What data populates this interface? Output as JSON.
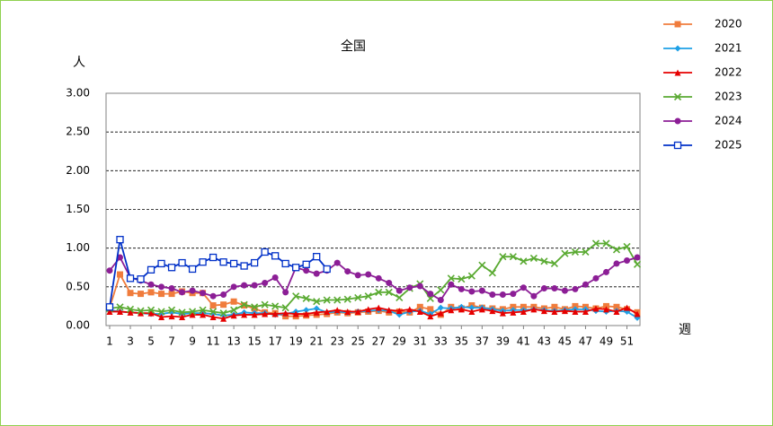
{
  "chart_data": {
    "type": "line",
    "title": "全国",
    "x_label": "週",
    "y_label": "人",
    "x": [
      1,
      2,
      3,
      4,
      5,
      6,
      7,
      8,
      9,
      10,
      11,
      12,
      13,
      14,
      15,
      16,
      17,
      18,
      19,
      20,
      21,
      22,
      23,
      24,
      25,
      26,
      27,
      28,
      29,
      30,
      31,
      32,
      33,
      34,
      35,
      36,
      37,
      38,
      39,
      40,
      41,
      42,
      43,
      44,
      45,
      46,
      47,
      48,
      49,
      50,
      51,
      52
    ],
    "xlim": [
      1,
      52
    ],
    "xticks": [
      1,
      3,
      5,
      7,
      9,
      11,
      13,
      15,
      17,
      19,
      21,
      23,
      25,
      27,
      29,
      31,
      33,
      35,
      37,
      39,
      41,
      43,
      45,
      47,
      49,
      51
    ],
    "ylim": [
      0,
      3
    ],
    "yticks": [
      {
        "value": 0,
        "label": "0.00"
      },
      {
        "value": 0.5,
        "label": "0.50"
      },
      {
        "value": 1,
        "label": "1.00"
      },
      {
        "value": 1.5,
        "label": "1.50"
      },
      {
        "value": 2,
        "label": "2.00"
      },
      {
        "value": 2.5,
        "label": "2.50"
      },
      {
        "value": 3,
        "label": "3.00"
      }
    ],
    "grid": true,
    "legend": "right",
    "series": [
      {
        "name": "2020",
        "color": "#f07c3c",
        "marker": "square",
        "values": [
          0.23,
          0.66,
          0.42,
          0.41,
          0.43,
          0.41,
          0.41,
          0.44,
          0.42,
          0.42,
          0.26,
          0.27,
          0.31,
          0.26,
          0.22,
          0.17,
          0.16,
          0.12,
          0.12,
          0.13,
          0.14,
          0.15,
          0.17,
          0.16,
          0.17,
          0.18,
          0.19,
          0.17,
          0.18,
          0.17,
          0.24,
          0.21,
          0.14,
          0.24,
          0.22,
          0.26,
          0.23,
          0.22,
          0.21,
          0.24,
          0.24,
          0.24,
          0.22,
          0.24,
          0.21,
          0.25,
          0.24,
          0.22,
          0.25,
          0.24,
          0.21,
          0.17
        ]
      },
      {
        "name": "2021",
        "color": "#1ea0e6",
        "marker": "diamond",
        "values": [
          0.2,
          0.18,
          0.17,
          0.16,
          0.15,
          0.15,
          0.17,
          0.15,
          0.16,
          0.16,
          0.15,
          0.13,
          0.14,
          0.17,
          0.16,
          0.16,
          0.14,
          0.15,
          0.18,
          0.2,
          0.22,
          0.17,
          0.18,
          0.17,
          0.18,
          0.19,
          0.2,
          0.19,
          0.14,
          0.18,
          0.19,
          0.15,
          0.23,
          0.22,
          0.24,
          0.23,
          0.23,
          0.21,
          0.19,
          0.2,
          0.2,
          0.21,
          0.2,
          0.19,
          0.2,
          0.21,
          0.21,
          0.19,
          0.18,
          0.19,
          0.18,
          0.1
        ]
      },
      {
        "name": "2022",
        "color": "#e60000",
        "marker": "triangle",
        "values": [
          0.18,
          0.18,
          0.17,
          0.16,
          0.16,
          0.11,
          0.12,
          0.11,
          0.14,
          0.14,
          0.11,
          0.09,
          0.13,
          0.14,
          0.14,
          0.15,
          0.15,
          0.16,
          0.15,
          0.15,
          0.17,
          0.18,
          0.2,
          0.18,
          0.18,
          0.21,
          0.23,
          0.2,
          0.19,
          0.21,
          0.18,
          0.12,
          0.16,
          0.2,
          0.21,
          0.18,
          0.21,
          0.19,
          0.16,
          0.17,
          0.18,
          0.21,
          0.19,
          0.18,
          0.19,
          0.18,
          0.18,
          0.22,
          0.21,
          0.18,
          0.23,
          0.15
        ]
      },
      {
        "name": "2023",
        "color": "#5aaa32",
        "marker": "cross",
        "values": [
          0.22,
          0.24,
          0.21,
          0.19,
          0.2,
          0.18,
          0.2,
          0.17,
          0.18,
          0.2,
          0.18,
          0.16,
          0.2,
          0.27,
          0.24,
          0.27,
          0.25,
          0.23,
          0.38,
          0.35,
          0.31,
          0.33,
          0.33,
          0.34,
          0.36,
          0.38,
          0.43,
          0.43,
          0.36,
          0.48,
          0.54,
          0.35,
          0.46,
          0.61,
          0.6,
          0.64,
          0.78,
          0.68,
          0.89,
          0.89,
          0.83,
          0.87,
          0.83,
          0.8,
          0.93,
          0.95,
          0.95,
          1.06,
          1.06,
          0.98,
          1.02,
          0.79
        ]
      },
      {
        "name": "2024",
        "color": "#8c1e96",
        "marker": "circle",
        "values": [
          0.71,
          0.88,
          0.62,
          0.58,
          0.53,
          0.5,
          0.48,
          0.43,
          0.45,
          0.42,
          0.38,
          0.4,
          0.5,
          0.52,
          0.52,
          0.55,
          0.62,
          0.43,
          0.75,
          0.71,
          0.67,
          0.71,
          0.81,
          0.7,
          0.65,
          0.66,
          0.61,
          0.55,
          0.45,
          0.49,
          0.51,
          0.41,
          0.33,
          0.53,
          0.47,
          0.44,
          0.45,
          0.4,
          0.4,
          0.41,
          0.49,
          0.38,
          0.48,
          0.48,
          0.45,
          0.47,
          0.53,
          0.61,
          0.69,
          0.8,
          0.84,
          0.88
        ]
      },
      {
        "name": "2025",
        "color": "#0030c8",
        "marker": "open-square",
        "values": [
          0.24,
          1.11,
          0.61,
          0.6,
          0.72,
          0.8,
          0.75,
          0.81,
          0.73,
          0.82,
          0.88,
          0.82,
          0.8,
          0.77,
          0.81,
          0.95,
          0.9,
          0.8,
          0.75,
          0.79,
          0.89,
          0.73,
          null,
          null,
          null,
          null,
          null,
          null,
          null,
          null,
          null,
          null,
          null,
          null,
          null,
          null,
          null,
          null,
          null,
          null,
          null,
          null,
          null,
          null,
          null,
          null,
          null,
          null,
          null,
          null,
          null,
          null
        ]
      }
    ]
  }
}
